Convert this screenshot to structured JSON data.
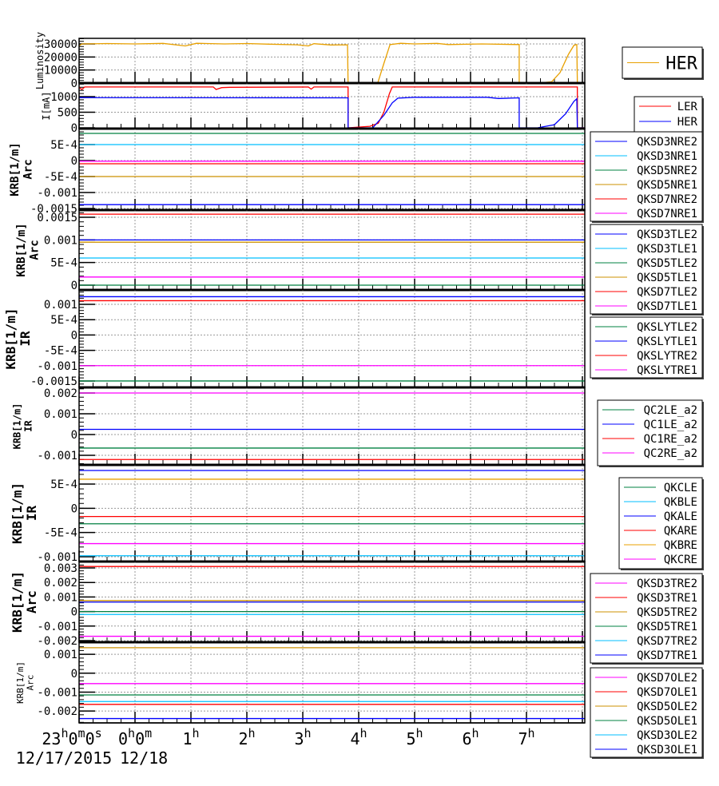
{
  "chart_data": [
    {
      "type": "line",
      "id": "lum",
      "ylabel": [
        "Luminosity"
      ],
      "ylim": [
        0,
        34286
      ],
      "yticks": [
        {
          "v": 0,
          "label": "0"
        },
        {
          "v": 10000,
          "label": "10000"
        },
        {
          "v": 20000,
          "label": "20000"
        },
        {
          "v": 30000,
          "label": "30000"
        }
      ],
      "legend": {
        "placement": "right",
        "big": true
      },
      "series": [
        {
          "name": "HER",
          "color": "#e8a000",
          "points": [
            [
              0,
              28500
            ],
            [
              0.05,
              30000
            ],
            [
              0.5,
              30300
            ],
            [
              1,
              30000
            ],
            [
              1.5,
              30400
            ],
            [
              1.9,
              28500
            ],
            [
              2.1,
              30500
            ],
            [
              2.6,
              30000
            ],
            [
              3,
              30300
            ],
            [
              3.4,
              29800
            ],
            [
              3.9,
              29300
            ],
            [
              4.1,
              28500
            ],
            [
              4.2,
              30200
            ],
            [
              4.5,
              29200
            ],
            [
              4.8,
              29300
            ],
            [
              4.81,
              0
            ],
            [
              5.34,
              0
            ],
            [
              5.45,
              15000
            ],
            [
              5.56,
              29500
            ],
            [
              5.75,
              30500
            ],
            [
              6,
              30000
            ],
            [
              6.4,
              30400
            ],
            [
              6.6,
              29500
            ],
            [
              7.2,
              30000
            ],
            [
              7.87,
              29500
            ],
            [
              7.87,
              0
            ],
            [
              8.2,
              0
            ],
            [
              8.45,
              1000
            ],
            [
              8.6,
              8000
            ],
            [
              8.75,
              22000
            ],
            [
              8.85,
              29000
            ],
            [
              8.9,
              29500
            ],
            [
              8.91,
              0
            ],
            [
              9.04,
              0
            ]
          ]
        }
      ]
    },
    {
      "type": "line",
      "id": "current",
      "ylabel": [
        "I[mA]"
      ],
      "ylim": [
        -25,
        1435
      ],
      "yticks": [
        {
          "v": 0,
          "label": "0"
        },
        {
          "v": 500,
          "label": "500"
        },
        {
          "v": 1000,
          "label": "1000"
        }
      ],
      "legend": {
        "placement": "right"
      },
      "series": [
        {
          "name": "LER",
          "color": "#ff0000",
          "points": [
            [
              0,
              1300
            ],
            [
              0.05,
              1230
            ],
            [
              0.1,
              1310
            ],
            [
              2.4,
              1310
            ],
            [
              2.45,
              1230
            ],
            [
              2.55,
              1290
            ],
            [
              2.7,
              1300
            ],
            [
              4.1,
              1310
            ],
            [
              4.15,
              1240
            ],
            [
              4.2,
              1310
            ],
            [
              4.81,
              1310
            ],
            [
              4.81,
              0
            ],
            [
              5.2,
              50
            ],
            [
              5.35,
              150
            ],
            [
              5.45,
              500
            ],
            [
              5.55,
              1100
            ],
            [
              5.6,
              1310
            ],
            [
              8.91,
              1310
            ],
            [
              8.91,
              0
            ],
            [
              9.04,
              0
            ]
          ]
        },
        {
          "name": "HER",
          "color": "#0000ff",
          "points": [
            [
              0,
              970
            ],
            [
              4.81,
              960
            ],
            [
              4.81,
              0
            ],
            [
              5.25,
              0
            ],
            [
              5.45,
              400
            ],
            [
              5.6,
              800
            ],
            [
              5.7,
              950
            ],
            [
              6,
              980
            ],
            [
              7.3,
              980
            ],
            [
              7.5,
              940
            ],
            [
              7.87,
              960
            ],
            [
              7.87,
              0
            ],
            [
              8.2,
              0
            ],
            [
              8.5,
              100
            ],
            [
              8.7,
              450
            ],
            [
              8.85,
              850
            ],
            [
              8.9,
              930
            ],
            [
              8.91,
              0
            ],
            [
              9.04,
              0
            ]
          ]
        }
      ]
    },
    {
      "type": "line",
      "id": "arc-nre",
      "ylabel": [
        "KRB[1/m]",
        "Arc"
      ],
      "ylim": [
        -0.00155,
        0.001
      ],
      "yticks": [
        {
          "v": 0.0005,
          "label": "5E-4"
        },
        {
          "v": 0,
          "label": "0"
        },
        {
          "v": -0.0005,
          "label": "-5E-4"
        },
        {
          "v": -0.001,
          "label": "-0.001"
        },
        {
          "v": -0.0015,
          "label": "-0.0015"
        }
      ],
      "legend": {
        "placement": "right"
      },
      "series": [
        {
          "name": "QKSD3NRE2",
          "color": "#0000ff",
          "value": -0.00138
        },
        {
          "name": "QKSD3NRE1",
          "color": "#00bfff",
          "value": 0.0005
        },
        {
          "name": "QKSD5NRE2",
          "color": "#008040",
          "value": 0.00085
        },
        {
          "name": "QKSD5NRE1",
          "color": "#cc9000",
          "value": -0.0005
        },
        {
          "name": "QKSD7NRE2",
          "color": "#ff0000",
          "value": -0.0001
        },
        {
          "name": "QKSD7NRE1",
          "color": "#ff00ff",
          "value": -2e-05
        }
      ]
    },
    {
      "type": "line",
      "id": "arc-tle",
      "ylabel": [
        "KRB[1/m]",
        "Arc"
      ],
      "ylim": [
        -0.000106,
        0.00166
      ],
      "yticks": [
        {
          "v": 0.0015,
          "label": "0.0015"
        },
        {
          "v": 0.001,
          "label": "0.001"
        },
        {
          "v": 0.0005,
          "label": "5E-4"
        },
        {
          "v": 0,
          "label": "0"
        }
      ],
      "legend": {
        "placement": "right"
      },
      "series": [
        {
          "name": "QKSD3TLE2",
          "color": "#0000ff",
          "value": 0.001
        },
        {
          "name": "QKSD3TLE1",
          "color": "#00bfff",
          "value": 0.0006
        },
        {
          "name": "QKSD5TLE2",
          "color": "#008040",
          "value": 0
        },
        {
          "name": "QKSD5TLE1",
          "color": "#cc9000",
          "value": 0.00095
        },
        {
          "name": "QKSD7TLE2",
          "color": "#ff0000",
          "value": 0.00157
        },
        {
          "name": "QKSD7TLE1",
          "color": "#ff00ff",
          "value": 0.00018
        }
      ]
    },
    {
      "type": "line",
      "id": "ir-sly",
      "ylabel": [
        "KRB[1/m]",
        "IR"
      ],
      "ylim": [
        -0.00171,
        0.00147
      ],
      "yticks": [
        {
          "v": 0.001,
          "label": "0.001"
        },
        {
          "v": 0.0005,
          "label": "5E-4"
        },
        {
          "v": 0,
          "label": "0"
        },
        {
          "v": -0.0005,
          "label": "-5E-4"
        },
        {
          "v": -0.001,
          "label": "-0.001"
        },
        {
          "v": -0.0015,
          "label": "-0.0015"
        }
      ],
      "legend": {
        "placement": "right"
      },
      "series": [
        {
          "name": "QKSLYTLE2",
          "color": "#008040",
          "value": -0.0015
        },
        {
          "name": "QKSLYTLE1",
          "color": "#0000ff",
          "value": 0.00125
        },
        {
          "name": "QKSLYTRE2",
          "color": "#ff0000",
          "value": 0.00112
        },
        {
          "name": "QKSLYTRE1",
          "color": "#ff00ff",
          "value": -0.001
        }
      ]
    },
    {
      "type": "line",
      "id": "ir-qc",
      "ylabel": [
        "KRB[1/m]",
        "IR"
      ],
      "ylim": [
        -0.00146,
        0.00227
      ],
      "yticks": [
        {
          "v": 0.002,
          "label": "0.002"
        },
        {
          "v": 0.001,
          "label": "0.001"
        },
        {
          "v": 0,
          "label": "0"
        },
        {
          "v": -0.001,
          "label": "-0.001"
        }
      ],
      "legend": {
        "placement": "right"
      },
      "series": [
        {
          "name": "QC2LE_a2",
          "color": "#008040",
          "value": -0.00065
        },
        {
          "name": "QC1LE_a2",
          "color": "#0000ff",
          "value": 0.00025
        },
        {
          "name": "QC1RE_a2",
          "color": "#ff0000",
          "value": -0.0012
        },
        {
          "name": "QC2RE_a2",
          "color": "#ff00ff",
          "value": 0.002
        }
      ]
    },
    {
      "type": "line",
      "id": "ir-qk",
      "ylabel": [
        "KRB[1/m]",
        "IR"
      ],
      "ylim": [
        -0.0011,
        0.000896
      ],
      "yticks": [
        {
          "v": 0.0005,
          "label": "5E-4"
        },
        {
          "v": 0,
          "label": "0"
        },
        {
          "v": -0.0005,
          "label": "-5E-4"
        },
        {
          "v": -0.001,
          "label": "-0.001"
        }
      ],
      "legend": {
        "placement": "right"
      },
      "series": [
        {
          "name": "QKCLE",
          "color": "#008040",
          "value": -0.00032
        },
        {
          "name": "QKBLE",
          "color": "#00bfff",
          "value": -0.00098
        },
        {
          "name": "QKALE",
          "color": "#0000ff",
          "value": 0.00078
        },
        {
          "name": "QKARE",
          "color": "#ff0000",
          "value": -0.00017
        },
        {
          "name": "QKBRE",
          "color": "#e8a000",
          "value": 0.0006
        },
        {
          "name": "QKCRE",
          "color": "#ff00ff",
          "value": -0.00073
        }
      ]
    },
    {
      "type": "line",
      "id": "arc-tre",
      "ylabel": [
        "KRB[1/m]",
        "Arc"
      ],
      "ylim": [
        -0.00211,
        0.00344
      ],
      "yticks": [
        {
          "v": 0.003,
          "label": "0.003"
        },
        {
          "v": 0.002,
          "label": "0.002"
        },
        {
          "v": 0.001,
          "label": "0.001"
        },
        {
          "v": 0,
          "label": "0"
        },
        {
          "v": -0.001,
          "label": "-0.001"
        },
        {
          "v": -0.002,
          "label": "-0.002"
        }
      ],
      "legend": {
        "placement": "right"
      },
      "series": [
        {
          "name": "QKSD3TRE2",
          "color": "#ff00ff",
          "value": -0.0017
        },
        {
          "name": "QKSD3TRE1",
          "color": "#ff0000",
          "value": 0.0031
        },
        {
          "name": "QKSD5TRE2",
          "color": "#cc9000",
          "value": 0.00075
        },
        {
          "name": "QKSD5TRE1",
          "color": "#008040",
          "value": 0
        },
        {
          "name": "QKSD7TRE2",
          "color": "#00bfff",
          "value": -0.0002
        },
        {
          "name": "QKSD7TRE1",
          "color": "#0000ff",
          "value": 0.00065
        }
      ]
    },
    {
      "type": "line",
      "id": "arc-ole",
      "ylabel": [
        "KRB[1/m]",
        "Arc"
      ],
      "ylim": [
        -0.00263,
        0.00164
      ],
      "yticks": [
        {
          "v": 0.001,
          "label": "0.001"
        },
        {
          "v": 0,
          "label": "0"
        },
        {
          "v": -0.001,
          "label": "-0.001"
        },
        {
          "v": -0.002,
          "label": "-0.002"
        }
      ],
      "legend": {
        "placement": "right"
      },
      "series": [
        {
          "name": "QKSD7OLE2",
          "color": "#ff00ff",
          "value": -0.00055
        },
        {
          "name": "QKSD7OLE1",
          "color": "#ff0000",
          "value": -0.00165
        },
        {
          "name": "QKSD5OLE2",
          "color": "#cc9000",
          "value": 0.00135
        },
        {
          "name": "QKSD5OLE1",
          "color": "#008040",
          "value": -0.00115
        },
        {
          "name": "QKSD3OLE2",
          "color": "#00bfff",
          "value": -0.0015
        },
        {
          "name": "QKSD3OLE1",
          "color": "#0000ff",
          "value": -0.0024
        }
      ]
    }
  ],
  "x_axis": {
    "unit": "hours since 23:00 12/17/2015",
    "xlim": [
      0,
      9.04
    ],
    "ticks": [
      {
        "v": 0,
        "label": "23h0m0s"
      },
      {
        "v": 1,
        "label": "0h0m"
      },
      {
        "v": 2,
        "label": "1h"
      },
      {
        "v": 3,
        "label": "2h"
      },
      {
        "v": 4,
        "label": "3h"
      },
      {
        "v": 5,
        "label": "4h"
      },
      {
        "v": 6,
        "label": "5h"
      },
      {
        "v": 7,
        "label": "6h"
      },
      {
        "v": 8,
        "label": "7h"
      }
    ],
    "dates": [
      {
        "v": 0,
        "label": "12/17/2015"
      },
      {
        "v": 1,
        "label": "12/18"
      }
    ]
  }
}
